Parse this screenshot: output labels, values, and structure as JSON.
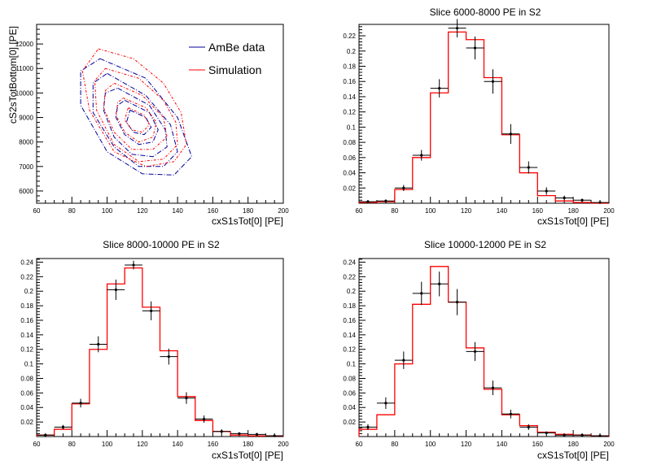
{
  "chart_data": [
    {
      "type": "contour",
      "title": "",
      "xlabel": "cxS1sTot[0]  [PE]",
      "ylabel": "cS2sTotBottom[0]  [PE]",
      "xlim": [
        60,
        200
      ],
      "ylim": [
        5500,
        12800
      ],
      "xticks": [
        60,
        80,
        100,
        120,
        140,
        160,
        180,
        200
      ],
      "yticks": [
        6000,
        7000,
        8000,
        9000,
        10000,
        11000,
        12000
      ],
      "legend": {
        "position": "top-right",
        "entries": [
          {
            "label": "AmBe data",
            "color": "#000099"
          },
          {
            "label": "Simulation",
            "color": "#ff0000"
          }
        ]
      },
      "series": [
        {
          "name": "AmBe data",
          "color": "#000099",
          "contours": [
            [
              [
                96,
                11400
              ],
              [
                122,
                10600
              ],
              [
                140,
                9000
              ],
              [
                148,
                7400
              ],
              [
                138,
                6650
              ],
              [
                120,
                6700
              ],
              [
                100,
                7600
              ],
              [
                85,
                9500
              ],
              [
                85,
                10900
              ]
            ],
            [
              [
                100,
                10800
              ],
              [
                122,
                9900
              ],
              [
                136,
                8700
              ],
              [
                140,
                7600
              ],
              [
                132,
                7000
              ],
              [
                118,
                7000
              ],
              [
                104,
                7800
              ],
              [
                92,
                9200
              ],
              [
                92,
                10400
              ]
            ],
            [
              [
                106,
                10200
              ],
              [
                124,
                9500
              ],
              [
                133,
                8500
              ],
              [
                134,
                7800
              ],
              [
                126,
                7400
              ],
              [
                114,
                7500
              ],
              [
                104,
                8200
              ],
              [
                98,
                9300
              ],
              [
                99,
                10000
              ]
            ],
            [
              [
                110,
                9700
              ],
              [
                124,
                9200
              ],
              [
                129,
                8500
              ],
              [
                126,
                8000
              ],
              [
                118,
                7900
              ],
              [
                110,
                8300
              ],
              [
                105,
                9000
              ],
              [
                106,
                9500
              ]
            ],
            [
              [
                113,
                9300
              ],
              [
                122,
                9000
              ],
              [
                125,
                8600
              ],
              [
                121,
                8300
              ],
              [
                115,
                8400
              ],
              [
                111,
                8800
              ]
            ]
          ]
        },
        {
          "name": "Simulation",
          "color": "#ff0000",
          "contours": [
            [
              [
                95,
                11800
              ],
              [
                115,
                11400
              ],
              [
                132,
                10400
              ],
              [
                142,
                9200
              ],
              [
                145,
                7900
              ],
              [
                138,
                7200
              ],
              [
                122,
                7000
              ],
              [
                104,
                7600
              ],
              [
                90,
                9300
              ],
              [
                86,
                10900
              ]
            ],
            [
              [
                99,
                11000
              ],
              [
                118,
                10600
              ],
              [
                132,
                9700
              ],
              [
                139,
                8800
              ],
              [
                140,
                7900
              ],
              [
                132,
                7300
              ],
              [
                118,
                7200
              ],
              [
                104,
                7900
              ],
              [
                94,
                9300
              ],
              [
                93,
                10500
              ]
            ],
            [
              [
                104,
                10400
              ],
              [
                120,
                9900
              ],
              [
                132,
                9000
              ],
              [
                134,
                8200
              ],
              [
                126,
                7700
              ],
              [
                114,
                7700
              ],
              [
                104,
                8400
              ],
              [
                98,
                9400
              ],
              [
                99,
                10100
              ]
            ],
            [
              [
                109,
                9800
              ],
              [
                122,
                9400
              ],
              [
                128,
                8800
              ],
              [
                126,
                8200
              ],
              [
                118,
                8000
              ],
              [
                110,
                8400
              ],
              [
                105,
                9100
              ],
              [
                106,
                9600
              ]
            ],
            [
              [
                112,
                9400
              ],
              [
                121,
                9100
              ],
              [
                124,
                8700
              ],
              [
                120,
                8400
              ],
              [
                114,
                8500
              ],
              [
                110,
                8900
              ]
            ]
          ]
        }
      ]
    },
    {
      "type": "histogram",
      "title": "Slice 6000-8000 PE in S2",
      "xlabel": "cxS1sTot[0]  [PE]",
      "ylabel": "",
      "xlim": [
        60,
        200
      ],
      "ylim": [
        0,
        0.235
      ],
      "xticks": [
        60,
        80,
        100,
        120,
        140,
        160,
        180,
        200
      ],
      "yticks": [
        0.02,
        0.04,
        0.06,
        0.08,
        0.1,
        0.12,
        0.14,
        0.16,
        0.18,
        0.2,
        0.22
      ],
      "bin_edges": [
        60,
        70,
        80,
        90,
        100,
        110,
        120,
        130,
        140,
        150,
        160,
        170,
        180,
        190,
        200
      ],
      "series": [
        {
          "name": "Simulation",
          "color": "#ff0000",
          "style": "step",
          "values": [
            0.001,
            0.002,
            0.018,
            0.06,
            0.145,
            0.225,
            0.215,
            0.165,
            0.09,
            0.04,
            0.01,
            0.003,
            0.001,
            0.0
          ]
        },
        {
          "name": "AmBe data",
          "color": "#000000",
          "style": "errorbar",
          "values": [
            0.002,
            0.003,
            0.02,
            0.063,
            0.151,
            0.23,
            0.204,
            0.16,
            0.091,
            0.047,
            0.016,
            0.007,
            0.004,
            0.001
          ],
          "errors": [
            0.001,
            0.002,
            0.004,
            0.007,
            0.012,
            0.012,
            0.015,
            0.016,
            0.013,
            0.008,
            0.005,
            0.003,
            0.002,
            0.001
          ]
        }
      ]
    },
    {
      "type": "histogram",
      "title": "Slice 8000-10000 PE in S2",
      "xlabel": "cxS1sTot[0]  [PE]",
      "ylabel": "",
      "xlim": [
        60,
        200
      ],
      "ylim": [
        0,
        0.245
      ],
      "xticks": [
        60,
        80,
        100,
        120,
        140,
        160,
        180,
        200
      ],
      "yticks": [
        0.02,
        0.04,
        0.06,
        0.08,
        0.1,
        0.12,
        0.14,
        0.16,
        0.18,
        0.2,
        0.22,
        0.24
      ],
      "bin_edges": [
        60,
        70,
        80,
        90,
        100,
        110,
        120,
        130,
        140,
        150,
        160,
        170,
        180,
        190,
        200
      ],
      "series": [
        {
          "name": "Simulation",
          "color": "#ff0000",
          "style": "step",
          "values": [
            0.002,
            0.01,
            0.045,
            0.12,
            0.21,
            0.232,
            0.178,
            0.118,
            0.055,
            0.022,
            0.007,
            0.002,
            0.001,
            0.001
          ]
        },
        {
          "name": "AmBe data",
          "color": "#000000",
          "style": "errorbar",
          "values": [
            0.002,
            0.013,
            0.046,
            0.127,
            0.202,
            0.236,
            0.173,
            0.11,
            0.053,
            0.024,
            0.007,
            0.004,
            0.003,
            0.001
          ],
          "errors": [
            0.001,
            0.003,
            0.006,
            0.011,
            0.014,
            0.006,
            0.013,
            0.011,
            0.008,
            0.005,
            0.003,
            0.002,
            0.002,
            0.001
          ]
        }
      ]
    },
    {
      "type": "histogram",
      "title": "Slice 10000-12000 PE in S2",
      "xlabel": "cxS1sTot[0]  [PE]",
      "ylabel": "",
      "xlim": [
        60,
        200
      ],
      "ylim": [
        0,
        0.245
      ],
      "xticks": [
        60,
        80,
        100,
        120,
        140,
        160,
        180,
        200
      ],
      "yticks": [
        0.02,
        0.04,
        0.06,
        0.08,
        0.1,
        0.12,
        0.14,
        0.16,
        0.18,
        0.2,
        0.22,
        0.24
      ],
      "bin_edges": [
        60,
        70,
        80,
        90,
        100,
        110,
        120,
        130,
        140,
        150,
        160,
        170,
        180,
        190,
        200
      ],
      "series": [
        {
          "name": "Simulation",
          "color": "#ff0000",
          "style": "step",
          "values": [
            0.01,
            0.03,
            0.1,
            0.182,
            0.234,
            0.185,
            0.122,
            0.065,
            0.03,
            0.015,
            0.006,
            0.003,
            0.002,
            0.001
          ]
        },
        {
          "name": "AmBe data",
          "color": "#000000",
          "style": "errorbar",
          "values": [
            0.013,
            0.046,
            0.105,
            0.197,
            0.21,
            0.185,
            0.117,
            0.067,
            0.031,
            0.013,
            0.005,
            0.002,
            0.002,
            0.001
          ],
          "errors": [
            0.004,
            0.008,
            0.012,
            0.016,
            0.017,
            0.018,
            0.013,
            0.01,
            0.006,
            0.004,
            0.002,
            0.001,
            0.001,
            0.001
          ]
        }
      ]
    }
  ]
}
